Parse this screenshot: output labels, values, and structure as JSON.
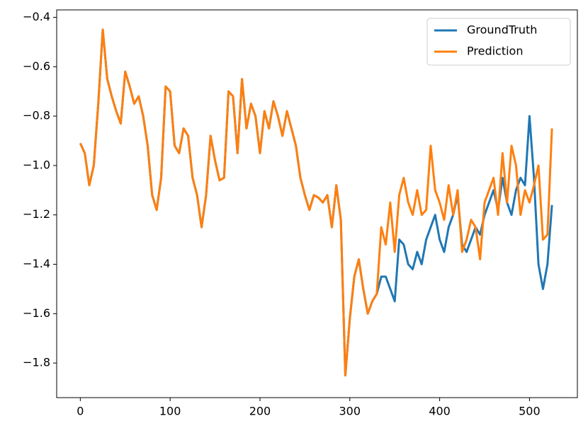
{
  "chart_data": {
    "type": "line",
    "x": [
      0,
      5,
      10,
      15,
      20,
      25,
      30,
      35,
      40,
      45,
      50,
      55,
      60,
      65,
      70,
      75,
      80,
      85,
      90,
      95,
      100,
      105,
      110,
      115,
      120,
      125,
      130,
      135,
      140,
      145,
      150,
      155,
      160,
      165,
      170,
      175,
      180,
      185,
      190,
      195,
      200,
      205,
      210,
      215,
      220,
      225,
      230,
      235,
      240,
      245,
      250,
      255,
      260,
      265,
      270,
      275,
      280,
      285,
      290,
      295,
      300,
      305,
      310,
      315,
      320,
      325,
      330,
      335,
      340,
      345,
      350,
      355,
      360,
      365,
      370,
      375,
      380,
      385,
      390,
      395,
      400,
      405,
      410,
      415,
      420,
      425,
      430,
      435,
      440,
      445,
      450,
      455,
      460,
      465,
      470,
      475,
      480,
      485,
      490,
      495,
      500,
      505,
      510,
      515,
      520,
      525
    ],
    "series": [
      {
        "name": "GroundTruth",
        "color": "#1f77b4",
        "values": [
          -0.91,
          -0.95,
          -1.08,
          -1.0,
          -0.75,
          -0.45,
          -0.65,
          -0.72,
          -0.78,
          -0.83,
          -0.62,
          -0.68,
          -0.75,
          -0.72,
          -0.8,
          -0.92,
          -1.12,
          -1.18,
          -1.05,
          -0.68,
          -0.7,
          -0.92,
          -0.95,
          -0.85,
          -0.88,
          -1.05,
          -1.12,
          -1.25,
          -1.12,
          -0.88,
          -0.98,
          -1.06,
          -1.05,
          -0.7,
          -0.72,
          -0.95,
          -0.65,
          -0.85,
          -0.75,
          -0.8,
          -0.95,
          -0.78,
          -0.85,
          -0.74,
          -0.8,
          -0.88,
          -0.78,
          -0.85,
          -0.92,
          -1.05,
          -1.12,
          -1.18,
          -1.12,
          -1.13,
          -1.15,
          -1.12,
          -1.25,
          -1.08,
          -1.22,
          -1.85,
          -1.62,
          -1.45,
          -1.38,
          -1.5,
          -1.6,
          -1.55,
          -1.52,
          -1.45,
          -1.45,
          -1.5,
          -1.55,
          -1.3,
          -1.32,
          -1.4,
          -1.42,
          -1.35,
          -1.4,
          -1.3,
          -1.25,
          -1.2,
          -1.3,
          -1.35,
          -1.25,
          -1.2,
          -1.12,
          -1.32,
          -1.35,
          -1.3,
          -1.25,
          -1.28,
          -1.2,
          -1.15,
          -1.1,
          -1.18,
          -1.05,
          -1.15,
          -1.2,
          -1.1,
          -1.05,
          -1.08,
          -0.8,
          -1.05,
          -1.4,
          -1.5,
          -1.4,
          -1.16
        ]
      },
      {
        "name": "Prediction",
        "color": "#ff7f0e",
        "values": [
          -0.91,
          -0.95,
          -1.08,
          -1.0,
          -0.75,
          -0.45,
          -0.65,
          -0.72,
          -0.78,
          -0.83,
          -0.62,
          -0.68,
          -0.75,
          -0.72,
          -0.8,
          -0.92,
          -1.12,
          -1.18,
          -1.05,
          -0.68,
          -0.7,
          -0.92,
          -0.95,
          -0.85,
          -0.88,
          -1.05,
          -1.12,
          -1.25,
          -1.12,
          -0.88,
          -0.98,
          -1.06,
          -1.05,
          -0.7,
          -0.72,
          -0.95,
          -0.65,
          -0.85,
          -0.75,
          -0.8,
          -0.95,
          -0.78,
          -0.85,
          -0.74,
          -0.8,
          -0.88,
          -0.78,
          -0.85,
          -0.92,
          -1.05,
          -1.12,
          -1.18,
          -1.12,
          -1.13,
          -1.15,
          -1.12,
          -1.25,
          -1.08,
          -1.22,
          -1.85,
          -1.62,
          -1.45,
          -1.38,
          -1.5,
          -1.6,
          -1.55,
          -1.52,
          -1.25,
          -1.32,
          -1.15,
          -1.35,
          -1.12,
          -1.05,
          -1.15,
          -1.2,
          -1.1,
          -1.2,
          -1.18,
          -0.92,
          -1.1,
          -1.15,
          -1.22,
          -1.08,
          -1.2,
          -1.1,
          -1.35,
          -1.3,
          -1.22,
          -1.25,
          -1.38,
          -1.15,
          -1.1,
          -1.05,
          -1.2,
          -0.95,
          -1.15,
          -0.92,
          -1.0,
          -1.2,
          -1.1,
          -1.15,
          -1.08,
          -1.0,
          -1.3,
          -1.28,
          -0.85
        ]
      }
    ],
    "xlim": [
      -26.3,
      553.3
    ],
    "xticks": [
      0,
      100,
      200,
      300,
      400,
      500
    ],
    "ylim": [
      -1.94,
      -0.37
    ],
    "yticks": [
      {
        "value": -1.8,
        "label": "−1.8"
      },
      {
        "value": -1.6,
        "label": "−1.6"
      },
      {
        "value": -1.4,
        "label": "−1.4"
      },
      {
        "value": -1.2,
        "label": "−1.2"
      },
      {
        "value": -1.0,
        "label": "−1.0"
      },
      {
        "value": -0.8,
        "label": "−0.8"
      },
      {
        "value": -0.6,
        "label": "−0.6"
      },
      {
        "value": -0.4,
        "label": "−0.4"
      }
    ],
    "legend": "upper right",
    "grid": false
  }
}
